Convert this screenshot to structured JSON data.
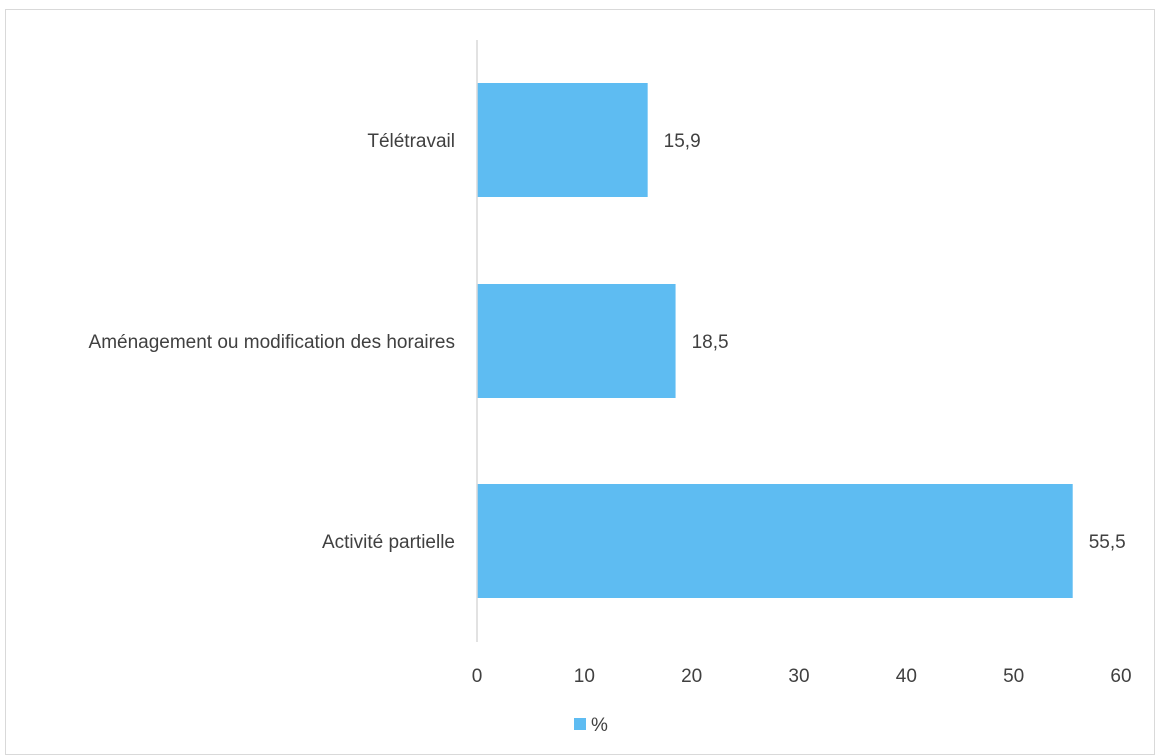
{
  "chart_data": {
    "type": "bar",
    "orientation": "horizontal",
    "categories": [
      "Télétravail",
      "Aménagement ou modification des horaires",
      "Activité partielle"
    ],
    "series": [
      {
        "name": "%",
        "values": [
          15.9,
          18.5,
          55.5
        ],
        "value_labels": [
          "15,9",
          "18,5",
          "55,5"
        ],
        "color": "#5ebcf2"
      }
    ],
    "xlim": [
      0,
      60
    ],
    "x_ticks": [
      "0",
      "10",
      "20",
      "30",
      "40",
      "50",
      "60"
    ],
    "grid": false,
    "legend_position": "bottom"
  }
}
